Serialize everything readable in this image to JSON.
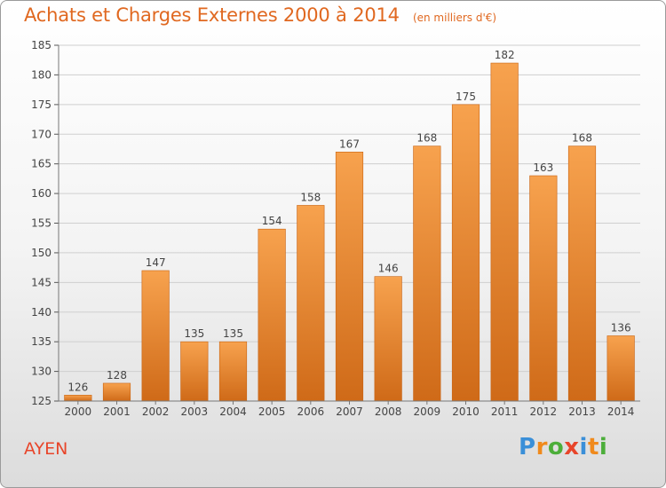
{
  "header": {
    "title": "Achats et Charges Externes 2000 à 2014",
    "subtitle": "(en milliers d'€)"
  },
  "footer": {
    "commune": "AYEN",
    "logo_text": "Proxiti",
    "logo_colors": [
      "#3a8fd8",
      "#f08a1c",
      "#4cae3a",
      "#e8452a",
      "#3a8fd8",
      "#f08a1c",
      "#4cae3a"
    ]
  },
  "colors": {
    "bar_top": "#f7a24e",
    "bar_bottom": "#cf6a18",
    "accent": "#e06820",
    "grid": "#cfcfcf"
  },
  "chart_data": {
    "type": "bar",
    "categories": [
      "2000",
      "2001",
      "2002",
      "2003",
      "2004",
      "2005",
      "2006",
      "2007",
      "2008",
      "2009",
      "2010",
      "2011",
      "2012",
      "2013",
      "2014"
    ],
    "values": [
      126,
      128,
      147,
      135,
      135,
      154,
      158,
      167,
      146,
      168,
      175,
      182,
      163,
      168,
      136
    ],
    "ylim": [
      125,
      185
    ],
    "yticks": [
      125,
      130,
      135,
      140,
      145,
      150,
      155,
      160,
      165,
      170,
      175,
      180,
      185
    ],
    "grid": true,
    "data_labels": true,
    "xlabel": "",
    "ylabel": ""
  }
}
